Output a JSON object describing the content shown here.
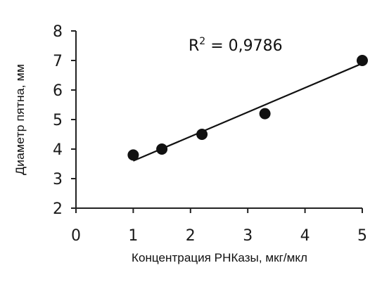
{
  "chart_data": {
    "type": "scatter",
    "xlabel": "Концентрация РНКазы, мкг/мкл",
    "ylabel": "Диаметр пятна, мм",
    "xlim": [
      0,
      5
    ],
    "ylim": [
      2,
      8
    ],
    "xticks": [
      0,
      1,
      2,
      3,
      4,
      5
    ],
    "yticks": [
      2,
      3,
      4,
      5,
      6,
      7,
      8
    ],
    "grid": false,
    "series": [
      {
        "points": [
          {
            "x": 1.0,
            "y": 3.8
          },
          {
            "x": 1.5,
            "y": 4.0
          },
          {
            "x": 2.2,
            "y": 4.5
          },
          {
            "x": 3.3,
            "y": 5.2
          },
          {
            "x": 5.0,
            "y": 7.0
          }
        ]
      }
    ],
    "trendline": {
      "type": "linear",
      "from": {
        "x": 1.0,
        "y": 3.6
      },
      "to": {
        "x": 5.0,
        "y": 6.9
      },
      "r2_label": "R",
      "r2_sup": "2",
      "r2_value": " = 0,9786"
    },
    "colors": {
      "marker": "#111111",
      "line": "#111111",
      "axis": "#222222"
    }
  }
}
